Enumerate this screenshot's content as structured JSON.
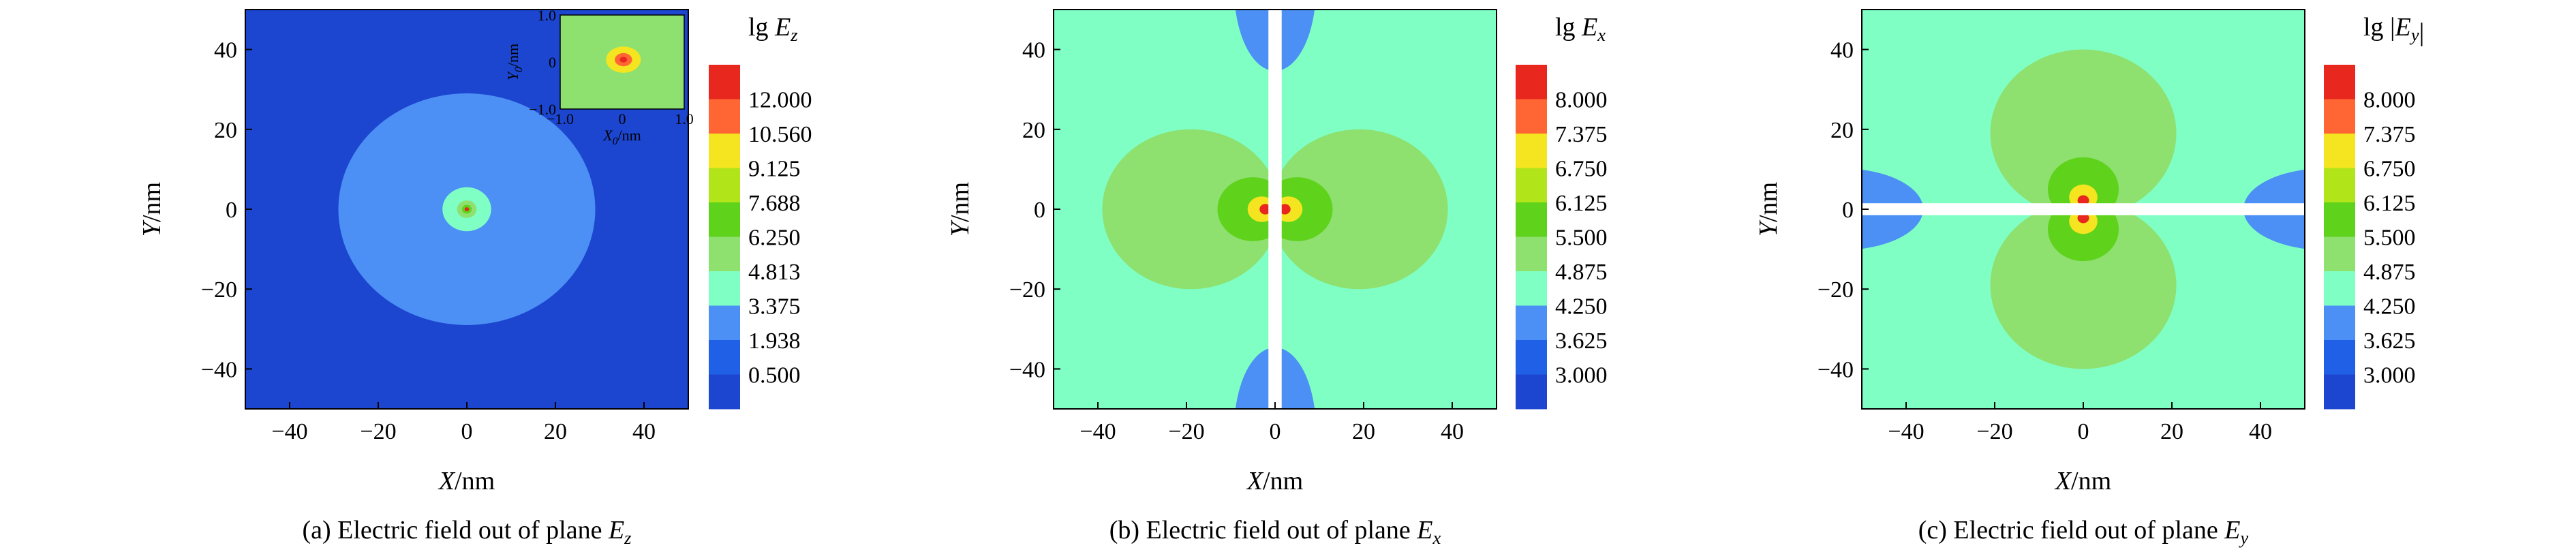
{
  "chart_data": [
    {
      "type": "heatmap",
      "field": "Ez",
      "xlabel": "X/nm",
      "ylabel": "Y/nm",
      "xlim": [
        -50,
        50
      ],
      "ylim": [
        -50,
        50
      ],
      "xticks": [
        -40,
        -20,
        0,
        20,
        40
      ],
      "yticks": [
        40,
        20,
        0,
        -20,
        -40
      ],
      "colorbar_title": "lg E_z",
      "colorbar_ticks": [
        "12.000",
        "10.560",
        "9.125",
        "7.688",
        "6.250",
        "4.813",
        "3.375",
        "1.938",
        "0.500"
      ],
      "colorbar_colors": [
        "#e8281e",
        "#ff6633",
        "#f5e520",
        "#b2e41a",
        "#5fd21c",
        "#8ee06f",
        "#7fffc4",
        "#4c8ff5",
        "#2060e6",
        "#1c46cf"
      ],
      "regions": [
        {
          "shape": "circle",
          "center": [
            0,
            0
          ],
          "radius": 29,
          "level": "1.938"
        },
        {
          "shape": "circle",
          "center": [
            0,
            0
          ],
          "radius": 5.5,
          "level": "3.375"
        },
        {
          "shape": "circle",
          "center": [
            0,
            0
          ],
          "radius": 2.2,
          "level": "4.813"
        },
        {
          "shape": "circle",
          "center": [
            0,
            0
          ],
          "radius": 1.1,
          "level": "6.250"
        },
        {
          "shape": "circle",
          "center": [
            0,
            0
          ],
          "radius": 0.5,
          "level": "12.000"
        }
      ],
      "inset": {
        "xlabel": "X_0/nm",
        "ylabel": "Y_0/nm",
        "xlim": [
          -1,
          1
        ],
        "ylim": [
          -1,
          1
        ],
        "xticks": [
          "−1.0",
          "0",
          "1.0"
        ],
        "yticks": [
          "1.0",
          "0",
          "−1.0"
        ]
      },
      "caption": "(a) Electric field out of plane E_z"
    },
    {
      "type": "heatmap",
      "field": "Ex",
      "xlabel": "X/nm",
      "ylabel": "Y/nm",
      "xlim": [
        -50,
        50
      ],
      "ylim": [
        -50,
        50
      ],
      "xticks": [
        -40,
        -20,
        0,
        20,
        40
      ],
      "yticks": [
        40,
        20,
        0,
        -20,
        -40
      ],
      "colorbar_title": "lg E_x",
      "colorbar_ticks": [
        "8.000",
        "7.375",
        "6.750",
        "6.125",
        "5.500",
        "4.875",
        "4.250",
        "3.625",
        "3.000"
      ],
      "colorbar_colors": [
        "#e8281e",
        "#ff6633",
        "#f5e520",
        "#b2e41a",
        "#5fd21c",
        "#8ee06f",
        "#7fffc4",
        "#4c8ff5",
        "#2060e6",
        "#1c46cf"
      ],
      "regions": [
        {
          "shape": "lobe",
          "center": [
            -19,
            0
          ],
          "radius": 20,
          "level": "4.875"
        },
        {
          "shape": "lobe",
          "center": [
            19,
            0
          ],
          "radius": 20,
          "level": "4.875"
        },
        {
          "shape": "lobe",
          "center": [
            -5,
            0
          ],
          "radius": 8,
          "level": "5.500"
        },
        {
          "shape": "lobe",
          "center": [
            5,
            0
          ],
          "radius": 8,
          "level": "5.500"
        },
        {
          "shape": "lobe",
          "center": [
            -3,
            0
          ],
          "radius": 3.2,
          "level": "6.750"
        },
        {
          "shape": "lobe",
          "center": [
            3,
            0
          ],
          "radius": 3.2,
          "level": "6.750"
        },
        {
          "shape": "lobe",
          "center": [
            -2.2,
            0
          ],
          "radius": 1.3,
          "level": "8.000"
        },
        {
          "shape": "lobe",
          "center": [
            2.2,
            0
          ],
          "radius": 1.3,
          "level": "8.000"
        }
      ],
      "gap": {
        "orientation": "vertical",
        "from": -1.5,
        "to": 1.5
      },
      "caption": "(b) Electric field out of plane E_x"
    },
    {
      "type": "heatmap",
      "field": "Ey",
      "xlabel": "X/nm",
      "ylabel": "Y/nm",
      "xlim": [
        -50,
        50
      ],
      "ylim": [
        -50,
        50
      ],
      "xticks": [
        -40,
        -20,
        0,
        20,
        40
      ],
      "yticks": [
        40,
        20,
        0,
        -20,
        -40
      ],
      "colorbar_title": "lg |E_y|",
      "colorbar_ticks": [
        "8.000",
        "7.375",
        "6.750",
        "6.125",
        "5.500",
        "4.875",
        "4.250",
        "3.625",
        "3.000"
      ],
      "colorbar_colors": [
        "#e8281e",
        "#ff6633",
        "#f5e520",
        "#b2e41a",
        "#5fd21c",
        "#8ee06f",
        "#7fffc4",
        "#4c8ff5",
        "#2060e6",
        "#1c46cf"
      ],
      "regions": [
        {
          "shape": "lobe",
          "center": [
            0,
            19
          ],
          "radius": 21,
          "level": "4.875"
        },
        {
          "shape": "lobe",
          "center": [
            0,
            -19
          ],
          "radius": 21,
          "level": "4.875"
        },
        {
          "shape": "lobe",
          "center": [
            0,
            5
          ],
          "radius": 8,
          "level": "5.500"
        },
        {
          "shape": "lobe",
          "center": [
            0,
            -5
          ],
          "radius": 8,
          "level": "5.500"
        },
        {
          "shape": "lobe",
          "center": [
            0,
            3
          ],
          "radius": 3.2,
          "level": "6.750"
        },
        {
          "shape": "lobe",
          "center": [
            0,
            -3
          ],
          "radius": 3.2,
          "level": "6.750"
        },
        {
          "shape": "lobe",
          "center": [
            0,
            2.2
          ],
          "radius": 1.3,
          "level": "8.000"
        },
        {
          "shape": "lobe",
          "center": [
            0,
            -2.2
          ],
          "radius": 1.3,
          "level": "8.000"
        }
      ],
      "gap": {
        "orientation": "horizontal",
        "from": -1.5,
        "to": 1.5
      },
      "caption": "(c) Electric field out of plane E_y"
    }
  ]
}
